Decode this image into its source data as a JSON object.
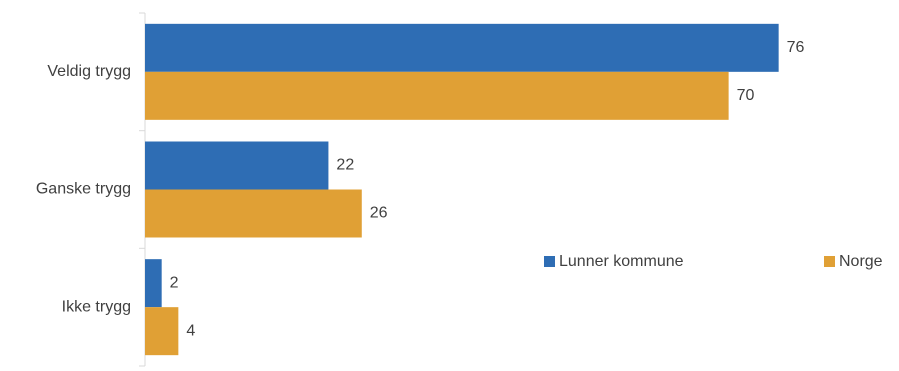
{
  "chart_data": {
    "type": "bar",
    "orientation": "horizontal",
    "categories": [
      "Veldig trygg",
      "Ganske trygg",
      "Ikke trygg"
    ],
    "series": [
      {
        "name": "Lunner kommune",
        "color": "#2e6db4",
        "values": [
          76,
          22,
          2
        ]
      },
      {
        "name": "Norge",
        "color": "#e0a035",
        "values": [
          70,
          26,
          4
        ]
      }
    ],
    "title": "",
    "xlabel": "",
    "ylabel": "",
    "xlim": [
      0,
      80
    ],
    "grid": false,
    "data_labels": true,
    "legend_position": "right"
  }
}
